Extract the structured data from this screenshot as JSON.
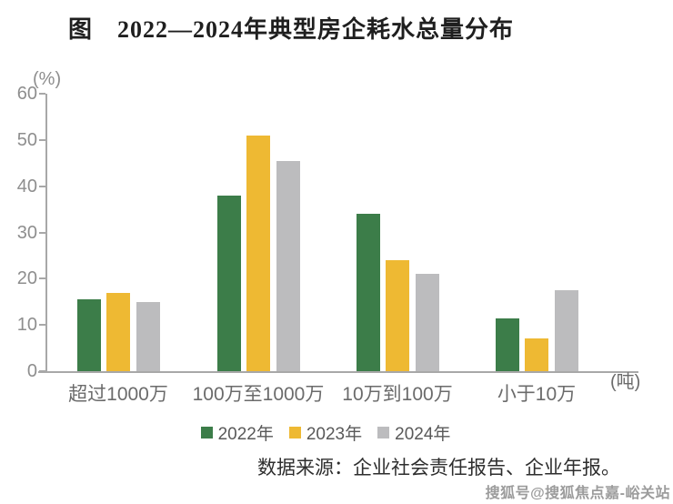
{
  "title": "图　2022—2024年典型房企耗水总量分布",
  "chart_data": {
    "type": "bar",
    "title": "图　2022—2024年典型房企耗水总量分布",
    "categories": [
      "超过1000万",
      "100万至1000万",
      "10万到100万",
      "小于10万"
    ],
    "series": [
      {
        "name": "2022年",
        "color": "#3c7d49",
        "values": [
          15.5,
          38.0,
          34.0,
          11.5
        ]
      },
      {
        "name": "2023年",
        "color": "#eeb933",
        "values": [
          17.0,
          51.0,
          24.0,
          7.0
        ]
      },
      {
        "name": "2024年",
        "color": "#bcbcbe",
        "values": [
          15.0,
          45.5,
          21.0,
          17.5
        ]
      }
    ],
    "ylabel": "(%)",
    "x_unit": "(吨)",
    "yticks": [
      0,
      10,
      20,
      30,
      40,
      50,
      60
    ],
    "ylim": [
      0,
      60
    ],
    "grid": false,
    "legend_position": "bottom"
  },
  "source": "数据来源：企业社会责任报告、企业年报。",
  "watermark": "搜狐号@搜狐焦点嘉-峪关站",
  "colors": {
    "axis": "#a8a8a8",
    "tick_text": "#8e8e8e",
    "category_text": "#6b6b6b",
    "legend_text": "#595959",
    "title_text": "#1f1f1f",
    "source_text": "#2e2e2e",
    "watermark_text": "#9c9c9c",
    "background": "#ffffff"
  }
}
